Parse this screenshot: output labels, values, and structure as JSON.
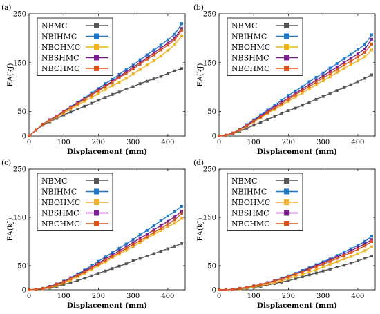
{
  "colors": {
    "NBMC": "#555555",
    "NBIHMC": "#1f77c8",
    "NBOHMC": "#f0b323",
    "NBSHMC": "#7a1f8c",
    "NBCHMC": "#d9541e"
  },
  "chart_data": [
    {
      "type": "line",
      "panel_label": "(a)",
      "xlabel": "Displacement (mm)",
      "ylabel": "EA(kJ)",
      "xlim": [
        0,
        450
      ],
      "ylim": [
        0,
        250
      ],
      "xticks": [
        0,
        100,
        200,
        300,
        400
      ],
      "yticks": [
        0,
        50,
        150,
        250
      ],
      "legend_position": "top-left",
      "x": [
        0,
        20,
        40,
        60,
        80,
        100,
        120,
        140,
        160,
        180,
        200,
        220,
        240,
        260,
        280,
        300,
        320,
        340,
        360,
        380,
        400,
        420,
        440
      ],
      "series": [
        {
          "name": "NBMC",
          "color": "#555555",
          "values": [
            0,
            12,
            22,
            29,
            36,
            43,
            49,
            55,
            61,
            67,
            73,
            79,
            85,
            90,
            96,
            101,
            107,
            112,
            117,
            122,
            128,
            133,
            138
          ]
        },
        {
          "name": "NBIHMC",
          "color": "#1f77c8",
          "values": [
            0,
            12,
            24,
            33,
            41,
            51,
            60,
            69,
            78,
            88,
            97,
            107,
            116,
            126,
            136,
            145,
            156,
            166,
            176,
            186,
            197,
            208,
            230
          ]
        },
        {
          "name": "NBOHMC",
          "color": "#f0b323",
          "values": [
            0,
            12,
            24,
            31,
            39,
            47,
            55,
            63,
            71,
            79,
            87,
            95,
            103,
            110,
            118,
            127,
            136,
            145,
            154,
            164,
            175,
            187,
            205
          ]
        },
        {
          "name": "NBSHMC",
          "color": "#7a1f8c",
          "values": [
            0,
            12,
            24,
            33,
            41,
            50,
            59,
            68,
            76,
            85,
            94,
            103,
            112,
            122,
            131,
            141,
            150,
            160,
            170,
            180,
            190,
            201,
            220
          ]
        },
        {
          "name": "NBCHMC",
          "color": "#d9541e",
          "values": [
            0,
            12,
            24,
            32,
            40,
            49,
            58,
            66,
            75,
            84,
            92,
            101,
            110,
            119,
            128,
            137,
            147,
            157,
            166,
            176,
            186,
            197,
            216
          ]
        }
      ]
    },
    {
      "type": "line",
      "panel_label": "(b)",
      "xlabel": "Displacement (mm)",
      "ylabel": "EA(kJ)",
      "xlim": [
        0,
        450
      ],
      "ylim": [
        0,
        250
      ],
      "xticks": [
        0,
        100,
        200,
        300,
        400
      ],
      "yticks": [
        0,
        50,
        150,
        250
      ],
      "legend_position": "top-left",
      "x": [
        0,
        20,
        40,
        60,
        80,
        100,
        120,
        140,
        160,
        180,
        200,
        220,
        240,
        260,
        280,
        300,
        320,
        340,
        360,
        380,
        400,
        420,
        440
      ],
      "series": [
        {
          "name": "NBMC",
          "color": "#555555",
          "values": [
            0,
            2,
            5,
            10,
            16,
            22,
            28,
            34,
            40,
            46,
            52,
            57,
            63,
            69,
            75,
            81,
            87,
            93,
            99,
            105,
            111,
            118,
            125
          ]
        },
        {
          "name": "NBIHMC",
          "color": "#1f77c8",
          "values": [
            0,
            2,
            6,
            14,
            23,
            33,
            43,
            53,
            63,
            73,
            83,
            92,
            101,
            111,
            120,
            129,
            139,
            148,
            158,
            167,
            177,
            187,
            207
          ]
        },
        {
          "name": "NBOHMC",
          "color": "#f0b323",
          "values": [
            0,
            2,
            6,
            12,
            20,
            29,
            37,
            46,
            54,
            63,
            71,
            80,
            88,
            96,
            105,
            113,
            121,
            130,
            138,
            146,
            154,
            162,
            176
          ]
        },
        {
          "name": "NBSHMC",
          "color": "#7a1f8c",
          "values": [
            0,
            2,
            6,
            13,
            22,
            31,
            41,
            50,
            60,
            69,
            78,
            87,
            96,
            105,
            114,
            123,
            132,
            141,
            150,
            159,
            168,
            178,
            198
          ]
        },
        {
          "name": "NBCHMC",
          "color": "#d9541e",
          "values": [
            0,
            2,
            6,
            13,
            21,
            30,
            39,
            48,
            57,
            66,
            75,
            84,
            93,
            101,
            110,
            119,
            127,
            136,
            145,
            153,
            162,
            171,
            188
          ]
        }
      ]
    },
    {
      "type": "line",
      "panel_label": "(c)",
      "xlabel": "Displacement (mm)",
      "ylabel": "EA(kJ)",
      "xlim": [
        0,
        450
      ],
      "ylim": [
        0,
        250
      ],
      "xticks": [
        0,
        100,
        200,
        300,
        400
      ],
      "yticks": [
        0,
        50,
        150,
        250
      ],
      "legend_position": "top-left",
      "x": [
        0,
        20,
        40,
        60,
        80,
        100,
        120,
        140,
        160,
        180,
        200,
        220,
        240,
        260,
        280,
        300,
        320,
        340,
        360,
        380,
        400,
        420,
        440
      ],
      "series": [
        {
          "name": "NBMC",
          "color": "#555555",
          "values": [
            0,
            1,
            2,
            4,
            7,
            11,
            15,
            19,
            24,
            29,
            34,
            39,
            44,
            49,
            54,
            60,
            65,
            70,
            75,
            80,
            85,
            90,
            96
          ]
        },
        {
          "name": "NBIHMC",
          "color": "#1f77c8",
          "values": [
            0,
            1,
            3,
            7,
            12,
            18,
            25,
            33,
            41,
            50,
            59,
            68,
            77,
            86,
            95,
            104,
            114,
            123,
            133,
            143,
            153,
            162,
            173
          ]
        },
        {
          "name": "NBOHMC",
          "color": "#f0b323",
          "values": [
            0,
            1,
            2,
            5,
            9,
            14,
            20,
            27,
            34,
            42,
            50,
            58,
            66,
            74,
            82,
            90,
            98,
            107,
            115,
            123,
            131,
            138,
            148
          ]
        },
        {
          "name": "NBSHMC",
          "color": "#7a1f8c",
          "values": [
            0,
            1,
            3,
            7,
            12,
            17,
            24,
            31,
            39,
            47,
            55,
            64,
            72,
            81,
            89,
            98,
            107,
            115,
            124,
            133,
            142,
            151,
            163
          ]
        },
        {
          "name": "NBCHMC",
          "color": "#d9541e",
          "values": [
            0,
            1,
            3,
            6,
            11,
            16,
            23,
            30,
            37,
            45,
            53,
            61,
            69,
            77,
            86,
            94,
            102,
            110,
            119,
            127,
            136,
            145,
            158
          ]
        }
      ]
    },
    {
      "type": "line",
      "panel_label": "(d)",
      "xlabel": "Displacement (mm)",
      "ylabel": "EA(kJ)",
      "xlim": [
        0,
        450
      ],
      "ylim": [
        0,
        250
      ],
      "xticks": [
        0,
        100,
        200,
        300,
        400
      ],
      "yticks": [
        0,
        50,
        150,
        250
      ],
      "legend_position": "top-left",
      "x": [
        0,
        20,
        40,
        60,
        80,
        100,
        120,
        140,
        160,
        180,
        200,
        220,
        240,
        260,
        280,
        300,
        320,
        340,
        360,
        380,
        400,
        420,
        440
      ],
      "series": [
        {
          "name": "NBMC",
          "color": "#555555",
          "values": [
            0,
            0,
            1,
            2,
            3,
            5,
            7,
            10,
            13,
            16,
            19,
            23,
            27,
            31,
            35,
            39,
            43,
            47,
            51,
            55,
            60,
            65,
            70
          ]
        },
        {
          "name": "NBIHMC",
          "color": "#1f77c8",
          "values": [
            0,
            0,
            1,
            3,
            5,
            8,
            11,
            15,
            19,
            24,
            29,
            34,
            40,
            46,
            52,
            58,
            64,
            71,
            78,
            85,
            92,
            100,
            111
          ]
        },
        {
          "name": "NBOHMC",
          "color": "#f0b323",
          "values": [
            0,
            0,
            1,
            2,
            4,
            6,
            9,
            12,
            15,
            19,
            23,
            28,
            32,
            37,
            42,
            47,
            53,
            58,
            64,
            69,
            75,
            81,
            89
          ]
        },
        {
          "name": "NBSHMC",
          "color": "#7a1f8c",
          "values": [
            0,
            0,
            1,
            3,
            5,
            8,
            11,
            15,
            19,
            23,
            28,
            33,
            38,
            44,
            50,
            56,
            62,
            68,
            74,
            81,
            88,
            95,
            104
          ]
        },
        {
          "name": "NBCHMC",
          "color": "#d9541e",
          "values": [
            0,
            0,
            1,
            3,
            5,
            8,
            11,
            14,
            18,
            22,
            27,
            32,
            37,
            42,
            48,
            53,
            59,
            65,
            71,
            77,
            84,
            91,
            100
          ]
        }
      ]
    }
  ]
}
